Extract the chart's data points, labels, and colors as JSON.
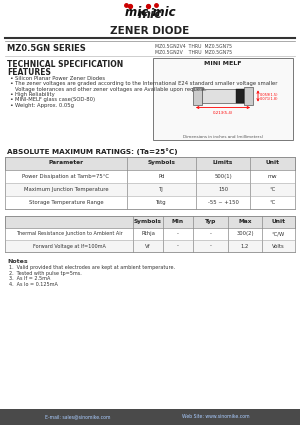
{
  "title": "ZENER DIODE",
  "series_title": "MZ0.5GN SERIES",
  "series_codes_line1": "MZ0.5GN2V4  THRU  MZ0.5GN75",
  "series_codes_line2": "MZ0.5GN2V    THRU  MZ0.5GN75",
  "tech_title": "TECHNICAL SPECIFICATION",
  "features_title": "FEATURES",
  "features": [
    "Silicon Planar Power Zener Diodes",
    "The zener voltages are graded according to the International E24 standard smaller voltage smaller\n  Voltage tolerances and other zener voltages are Available upon request.",
    "High Reliability",
    "MINI-MELF glass case(SOD-80)",
    "Weight: Approx. 0.05g"
  ],
  "diagram_title": "MINI MELF",
  "diagram_note": "Dimensions in inches and (millimeters)",
  "abs_max_title": "ABSOLUTE MAXIMUM RATINGS: (Ta=25°C)",
  "abs_max_headers": [
    "Parameter",
    "Symbols",
    "Limits",
    "Unit"
  ],
  "abs_max_rows": [
    [
      "Power Dissipation at Tamb=75°C",
      "Pd",
      "500(1)",
      "mw"
    ],
    [
      "Maximum Junction Temperature",
      "Tj",
      "150",
      "°C"
    ],
    [
      "Storage Temperature Range",
      "Tstg",
      "-55 ~ +150",
      "°C"
    ]
  ],
  "table2_headers": [
    "",
    "Symbols",
    "Min",
    "Typ",
    "Max",
    "Unit"
  ],
  "table2_rows": [
    [
      "Thermal Resistance Junction to Ambient Air",
      "Rthja",
      "-",
      "-",
      "300(2)",
      "°C/W"
    ],
    [
      "Forward Voltage at If=100mA",
      "Vf",
      "-",
      "-",
      "1.2",
      "Volts"
    ]
  ],
  "notes_title": "Notes",
  "notes": [
    "Valid provided that electrodes are kept at ambient temperature.",
    "Tested with pulse tp=5ms.",
    "As If = 2.5mA",
    "As Io = 0.125mA"
  ],
  "footer_email": "E-mail: sales@sinomike.com",
  "footer_web": "Web Site: www.sinomike.com",
  "bg_color": "#ffffff",
  "border_color": "#888888",
  "text_color": "#222222",
  "footer_bar_color": "#4a4a4a",
  "accent_color": "#cc0000"
}
